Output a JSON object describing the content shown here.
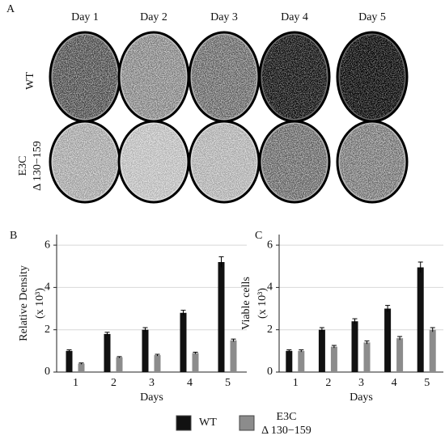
{
  "panel_a": {
    "label": "A",
    "days": [
      "Day 1",
      "Day 2",
      "Day 3",
      "Day 4",
      "Day 5"
    ],
    "rows": [
      {
        "label": [
          "WT"
        ]
      },
      {
        "label": [
          "E3C",
          "Δ 130−159"
        ]
      }
    ]
  },
  "chart_data": [
    {
      "type": "bar",
      "panel": "B",
      "ylabel": [
        "Relative Density",
        "(x 10³)"
      ],
      "xlabel": "Days",
      "categories": [
        "1",
        "2",
        "3",
        "4",
        "5"
      ],
      "series": [
        {
          "name": "WT",
          "color": "#111111",
          "values": [
            1.0,
            1.8,
            2.0,
            2.8,
            5.2
          ],
          "errors": [
            0.05,
            0.08,
            0.1,
            0.12,
            0.25
          ]
        },
        {
          "name": [
            "E3C",
            "Δ 130−159"
          ],
          "color": "#8c8c8c",
          "values": [
            0.4,
            0.7,
            0.8,
            0.9,
            1.5
          ],
          "errors": [
            0.03,
            0.03,
            0.04,
            0.04,
            0.06
          ]
        }
      ],
      "ylim": [
        0,
        6.5
      ],
      "yticks": [
        0,
        2,
        4,
        6
      ],
      "grid": true
    },
    {
      "type": "bar",
      "panel": "C",
      "ylabel": [
        "Viable cells",
        "(x 10³)"
      ],
      "xlabel": "Days",
      "categories": [
        "1",
        "2",
        "3",
        "4",
        "5"
      ],
      "series": [
        {
          "name": "WT",
          "color": "#111111",
          "values": [
            1.0,
            2.0,
            2.4,
            3.0,
            4.95
          ],
          "errors": [
            0.05,
            0.1,
            0.12,
            0.15,
            0.25
          ]
        },
        {
          "name": [
            "E3C",
            "Δ 130−159"
          ],
          "color": "#8c8c8c",
          "values": [
            1.0,
            1.2,
            1.4,
            1.6,
            2.0
          ],
          "errors": [
            0.05,
            0.06,
            0.07,
            0.08,
            0.1
          ]
        }
      ],
      "ylim": [
        0,
        6.5
      ],
      "yticks": [
        0,
        2,
        4,
        6
      ],
      "grid": true
    }
  ]
}
